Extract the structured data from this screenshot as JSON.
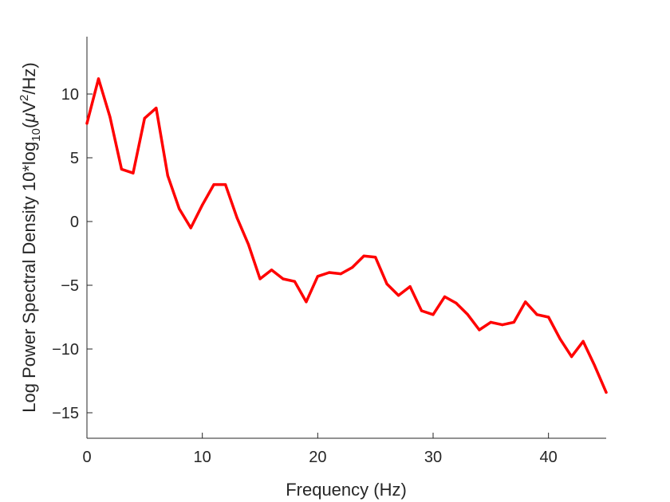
{
  "chart_data": {
    "type": "line",
    "xlabel": "Frequency (Hz)",
    "ylabel_parts": [
      "Log Power Spectral Density 10*log",
      "10",
      "(",
      "μ",
      "V",
      "2",
      "/Hz)"
    ],
    "xlim": [
      0,
      45
    ],
    "ylim": [
      -17,
      14.5
    ],
    "xticks": [
      0,
      10,
      20,
      30,
      40
    ],
    "yticks": [
      -15,
      -10,
      -5,
      0,
      5,
      10
    ],
    "grid": false,
    "series": [
      {
        "color": "#ff0000",
        "x": [
          0,
          1,
          2,
          3,
          4,
          5,
          6,
          7,
          8,
          9,
          10,
          11,
          12,
          13,
          14,
          15,
          16,
          17,
          18,
          19,
          20,
          21,
          22,
          23,
          24,
          25,
          26,
          27,
          28,
          29,
          30,
          31,
          32,
          33,
          34,
          35,
          36,
          37,
          38,
          39,
          40,
          41,
          42,
          43,
          44,
          45
        ],
        "values": [
          7.7,
          11.2,
          8.2,
          4.1,
          3.8,
          8.1,
          8.9,
          3.6,
          1.0,
          -0.5,
          1.3,
          2.9,
          2.9,
          0.3,
          -1.8,
          -4.5,
          -3.8,
          -4.5,
          -4.7,
          -6.3,
          -4.3,
          -4.0,
          -4.1,
          -3.6,
          -2.7,
          -2.8,
          -4.9,
          -5.8,
          -5.1,
          -7.0,
          -7.3,
          -5.9,
          -6.4,
          -7.3,
          -8.5,
          -7.9,
          -8.1,
          -7.9,
          -6.3,
          -7.3,
          -7.5,
          -9.2,
          -10.6,
          -9.4,
          -11.3,
          -13.4
        ]
      }
    ]
  }
}
